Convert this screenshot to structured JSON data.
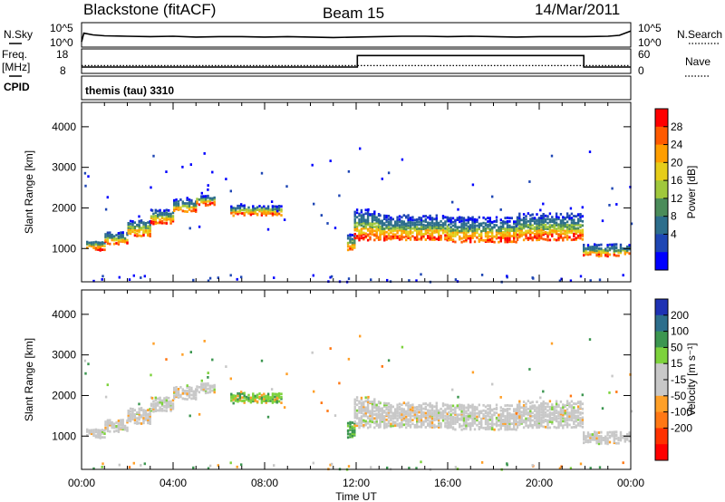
{
  "header": {
    "station": "Blackstone (fitACF)",
    "beam": "Beam 15",
    "date": "14/Mar/2011"
  },
  "chart_data": [
    {
      "type": "line",
      "panel": "noise",
      "left_label": "N.Sky",
      "right_label": "N.Search",
      "left_ticks": [
        "10^5",
        "10^0"
      ],
      "right_ticks": [
        "10^5",
        "10^0"
      ],
      "x": [
        0,
        0.1,
        0.5,
        1,
        2,
        3,
        4,
        5,
        6,
        7,
        8,
        9,
        10,
        11,
        12,
        13,
        14,
        15,
        16,
        17,
        18,
        19,
        20,
        21,
        22,
        23,
        23.5,
        24
      ],
      "values": [
        1,
        3,
        2.6,
        2.4,
        2.3,
        2.2,
        2.3,
        2.1,
        2.2,
        2.2,
        2.1,
        2.2,
        2.1,
        2.0,
        2.1,
        2.2,
        2.3,
        2.3,
        2.2,
        2.3,
        2.2,
        2.1,
        2.2,
        2.2,
        2.2,
        2.3,
        2.5,
        3.5
      ],
      "ylim": [
        0,
        5
      ]
    },
    {
      "type": "line",
      "panel": "frequency",
      "left_label": "Freq. [MHz]",
      "right_label": "Nave",
      "left_ticks": [
        "18",
        "8"
      ],
      "right_ticks": [
        "60",
        "0"
      ],
      "freq_steps": [
        [
          0,
          10.5
        ],
        [
          12.05,
          10.5
        ],
        [
          12.05,
          15.8
        ],
        [
          21.95,
          15.8
        ],
        [
          21.95,
          10.5
        ],
        [
          24,
          10.5
        ]
      ],
      "nave": [
        [
          0,
          19
        ],
        [
          24,
          19
        ]
      ],
      "ylim": [
        8,
        18
      ]
    },
    {
      "type": "table",
      "panel": "cpid",
      "label": "CPID",
      "value": "themis (tau) 3310"
    },
    {
      "type": "heatmap",
      "panel": "power",
      "ylabel": "Slant Range [km]",
      "y_ticks": [
        1000,
        2000,
        3000,
        4000
      ],
      "ylim": [
        180,
        4600
      ],
      "xlim": [
        0,
        24
      ],
      "colorbar_label": "Power [dB]",
      "colorbar_ticks": [
        "28",
        "24",
        "20",
        "16",
        "12",
        "8",
        "4"
      ],
      "colorbar_colors": [
        "#ff0000",
        "#ff5a00",
        "#ff9e00",
        "#e6cd19",
        "#a0c83c",
        "#4b8c5a",
        "#2d6e8c",
        "#1e46b4",
        "#0000ff"
      ],
      "bands": [
        {
          "t0": 0.2,
          "t1": 1.0,
          "r0": 1000,
          "r1": 1250
        },
        {
          "t0": 1.0,
          "t1": 2.0,
          "r0": 1150,
          "r1": 1450
        },
        {
          "t0": 2.0,
          "t1": 3.0,
          "r0": 1350,
          "r1": 1750
        },
        {
          "t0": 3.0,
          "t1": 4.0,
          "r0": 1650,
          "r1": 2000
        },
        {
          "t0": 4.0,
          "t1": 5.0,
          "r0": 1950,
          "r1": 2250
        },
        {
          "t0": 5.0,
          "t1": 5.8,
          "r0": 2100,
          "r1": 2350
        },
        {
          "t0": 6.5,
          "t1": 8.7,
          "r0": 1850,
          "r1": 2100
        },
        {
          "t0": 11.6,
          "t1": 11.9,
          "r0": 1000,
          "r1": 1400
        },
        {
          "t0": 11.9,
          "t1": 13.0,
          "r0": 1250,
          "r1": 2000
        },
        {
          "t0": 13.0,
          "t1": 16.0,
          "r0": 1250,
          "r1": 1850
        },
        {
          "t0": 16.0,
          "t1": 19.0,
          "r0": 1200,
          "r1": 1800
        },
        {
          "t0": 19.0,
          "t1": 21.9,
          "r0": 1250,
          "r1": 1900
        },
        {
          "t0": 21.9,
          "t1": 23.9,
          "r0": 850,
          "r1": 1150
        }
      ]
    },
    {
      "type": "heatmap",
      "panel": "velocity",
      "ylabel": "Slant Range [km]",
      "xlabel": "Time UT",
      "x_ticks": [
        "00:00",
        "04:00",
        "08:00",
        "12:00",
        "16:00",
        "20:00",
        "00:00"
      ],
      "y_ticks": [
        1000,
        2000,
        3000,
        4000
      ],
      "ylim": [
        180,
        4600
      ],
      "xlim": [
        0,
        24
      ],
      "colorbar_label": "Velocity [m s⁻¹]",
      "colorbar_ticks": [
        "200",
        "100",
        "50",
        "15",
        "-15",
        "-50",
        "-100",
        "-200"
      ],
      "colorbar_colors": [
        "#1e32b4",
        "#2d6e8c",
        "#3c9650",
        "#7dd23c",
        "#c8c8c8",
        "#c8c8c8",
        "#ffa028",
        "#ff7814",
        "#ff3200",
        "#ff0000"
      ]
    }
  ]
}
